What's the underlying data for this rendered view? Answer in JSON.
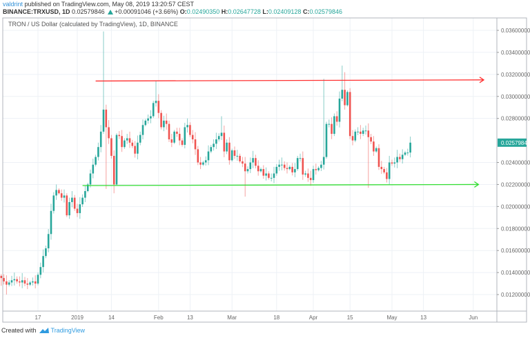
{
  "header": {
    "user": "valdrint",
    "published": "published on TradingView.com, May 08, 2019 13:20:57 CEST",
    "symbol": "BINANCE:TRXUSD, 1D",
    "last": "0.02579846",
    "change": "+0.00091046 (+3.66%)",
    "o_label": "O:",
    "o": "0.02490350",
    "h_label": "H:",
    "h": "0.02647728",
    "l_label": "L:",
    "l": "0.02409128",
    "c_label": "C:",
    "c": "0.02579846"
  },
  "legend": "TRON / US Dollar (calculated by TradingView), 1D, BINANCE",
  "footer": {
    "created": "Created with",
    "brand": "TradingView"
  },
  "colors": {
    "up": "#26a69a",
    "down": "#ef5350",
    "resistance": "#ff3030",
    "support": "#33dd33",
    "grid": "#edf1f6",
    "price_label_bg": "#26a69a"
  },
  "chart_data": {
    "type": "candlestick",
    "start_date": "2018-12-03",
    "unit": 0.001,
    "closes": [
      13.5,
      13.2,
      12.9,
      13.1,
      13.3,
      13.4,
      13.2,
      13.1,
      13.3,
      13.0,
      12.9,
      13.1,
      13.2,
      13.0,
      13.8,
      14.5,
      15.5,
      16.2,
      17.5,
      19.6,
      21.0,
      21.5,
      21.2,
      20.8,
      21.0,
      19.2,
      20.4,
      20.8,
      19.8,
      19.4,
      20.2,
      20.8,
      21.4,
      22.0,
      23.0,
      23.8,
      24.5,
      25.4,
      26.8,
      28.8,
      27.2,
      26.2,
      24.6,
      22.0,
      26.5,
      26.4,
      25.4,
      26.0,
      26.2,
      25.8,
      25.5,
      24.8,
      25.8,
      26.5,
      27.4,
      27.8,
      28.0,
      28.2,
      29.4,
      29.6,
      28.5,
      27.2,
      27.8,
      27.5,
      26.1,
      25.8,
      26.8,
      26.6,
      26.0,
      25.6,
      27.2,
      27.4,
      26.5,
      26.1,
      25.2,
      24.0,
      23.8,
      24.0,
      24.2,
      25.0,
      25.4,
      25.7,
      26.1,
      26.4,
      26.7,
      25.0,
      25.8,
      24.2,
      25.1,
      24.6,
      24.6,
      24.1,
      23.9,
      23.2,
      23.4,
      24.0,
      24.4,
      23.7,
      23.2,
      23.4,
      22.8,
      23.0,
      22.6,
      22.6,
      23.0,
      23.6,
      23.8,
      23.8,
      23.5,
      23.4,
      23.6,
      23.1,
      23.4,
      24.4,
      24.4,
      22.9,
      23.0,
      22.6,
      22.4,
      23.4,
      23.3,
      23.5,
      23.8,
      24.5,
      27.5,
      27.5,
      26.6,
      28.2,
      27.7,
      29.8,
      30.6,
      29.2,
      30.4,
      26.4,
      26.0,
      26.8,
      26.8,
      26.6,
      26.9,
      26.9,
      26.3,
      25.9,
      25.0,
      25.3,
      23.6,
      23.4,
      23.1,
      22.5,
      24.0,
      23.9,
      24.0,
      24.5,
      24.3,
      24.7,
      24.9,
      24.9,
      25.8
    ],
    "notable_highs": {
      "39": 35.9,
      "59": 31.4,
      "123": 31.6,
      "130": 32.8,
      "131": 32.2,
      "84": 28.2
    },
    "notable_lows": {
      "43": 21.2,
      "40": 21.6,
      "93": 20.9,
      "140": 21.7,
      "0": 12.8,
      "2": 12.0
    },
    "y_ticks": [
      "0.03600000",
      "0.03400000",
      "0.03200000",
      "0.03000000",
      "0.02800000",
      "0.02400000",
      "0.02200000",
      "0.02000000",
      "0.01800000",
      "0.01600000",
      "0.01400000",
      "0.01200000"
    ],
    "y_tick_values": [
      36,
      34,
      32,
      30,
      28,
      24,
      22,
      20,
      18,
      16,
      14,
      12
    ],
    "x_ticks": [
      {
        "label": "17",
        "day": 14
      },
      {
        "label": "2019",
        "day": 29
      },
      {
        "label": "14",
        "day": 42
      },
      {
        "label": "Feb",
        "day": 60
      },
      {
        "label": "13",
        "day": 72
      },
      {
        "label": "Mar",
        "day": 88
      },
      {
        "label": "18",
        "day": 105
      },
      {
        "label": "Apr",
        "day": 119
      },
      {
        "label": "15",
        "day": 133
      },
      {
        "label": "May",
        "day": 149
      },
      {
        "label": "13",
        "day": 161
      },
      {
        "label": "Jun",
        "day": 180
      }
    ],
    "ylim": [
      11,
      37.1
    ],
    "current_price": {
      "label": "0.02579846",
      "value": 25.79846
    },
    "resistance": {
      "from_day": 36,
      "to_day": 184,
      "value_start": 31.4,
      "value_end": 31.5
    },
    "support": {
      "from_day": 31,
      "to_day": 182,
      "value_start": 21.9,
      "value_end": 22.0
    }
  }
}
